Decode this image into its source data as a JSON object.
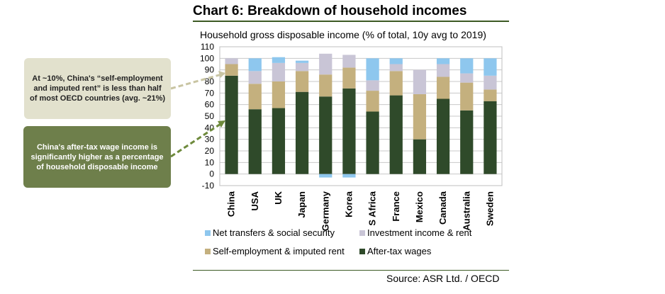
{
  "title": "Chart 6:  Breakdown of household incomes",
  "subtitle": "Household gross disposable income (% of total, 10y avg to 2019)",
  "source": "Source: ASR Ltd. / OECD",
  "callouts": {
    "rent": "At ~10%, China's “self-employment and imputed rent” is less than half of most OECD countries (avg. ~21%)",
    "wage": "China's after-tax wage income is significantly higher as a percentage of household disposable income"
  },
  "colors": {
    "wages": "#2f4a2a",
    "self_employment": "#c4b07e",
    "investment": "#c9c5d6",
    "transfers": "#8ec7ee",
    "callout_rent_bg": "#e2e1cd",
    "callout_wage_bg": "#6e7f4b",
    "rule": "#3d5a24"
  },
  "chart_data": {
    "type": "bar",
    "stacked": true,
    "title": "Household gross disposable income (% of total, 10y avg to 2019)",
    "xlabel": "",
    "ylabel": "",
    "ylim": [
      -10,
      110
    ],
    "yticks": [
      -10,
      0,
      10,
      20,
      30,
      40,
      50,
      60,
      70,
      80,
      90,
      100,
      110
    ],
    "grid": true,
    "legend_position": "bottom",
    "categories": [
      "China",
      "USA",
      "UK",
      "Japan",
      "Germany",
      "Korea",
      "S Africa",
      "France",
      "Mexico",
      "Canada",
      "Australia",
      "Sweden"
    ],
    "series": [
      {
        "name": "After-tax wages",
        "key": "wages",
        "values": [
          85,
          56,
          57,
          71,
          67,
          74,
          54,
          68,
          30,
          65,
          55,
          63
        ]
      },
      {
        "name": "Self-employment & imputed rent",
        "key": "self_employment",
        "values": [
          10,
          22,
          23,
          18,
          19,
          18,
          18,
          21,
          39,
          19,
          24,
          10
        ]
      },
      {
        "name": "Investment income & rent",
        "key": "investment",
        "values": [
          5,
          11,
          16,
          7,
          18,
          11,
          9,
          6,
          21,
          11,
          8,
          12
        ]
      },
      {
        "name": "Net transfers & social security",
        "key": "transfers",
        "values": [
          0,
          11,
          5,
          2,
          -3,
          -3,
          19,
          5,
          0,
          5,
          13,
          15
        ]
      }
    ]
  },
  "legend": {
    "transfers": "Net transfers & social security",
    "investment": "Investment income & rent",
    "self_employment": "Self-employment & imputed rent",
    "wages": "After-tax wages"
  }
}
